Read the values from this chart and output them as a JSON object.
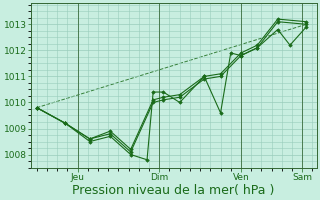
{
  "bg_color": "#c8eee0",
  "grid_color": "#99ccbb",
  "line_color": "#1a6b1a",
  "xlabel": "Pression niveau de la mer( hPa )",
  "xlabel_fontsize": 9,
  "tick_fontsize": 6.5,
  "ylim": [
    1007.5,
    1013.8
  ],
  "yticks": [
    1008,
    1009,
    1010,
    1011,
    1012,
    1013
  ],
  "day_labels": [
    "Jeu",
    "Dim",
    "Ven",
    "Sam"
  ],
  "day_positions": [
    1,
    3,
    5,
    6.5
  ],
  "series1_x": [
    0.0,
    0.7,
    1.3,
    1.8,
    2.3,
    2.7,
    2.85,
    3.1,
    3.5,
    4.1,
    4.5,
    4.75,
    5.0,
    5.4,
    5.9,
    6.2,
    6.6
  ],
  "series1_y": [
    1009.8,
    1009.2,
    1008.5,
    1008.7,
    1008.0,
    1007.8,
    1010.4,
    1010.4,
    1010.0,
    1011.0,
    1009.6,
    1011.9,
    1011.8,
    1012.1,
    1012.8,
    1012.2,
    1012.9
  ],
  "series2_x": [
    0.0,
    0.7,
    1.3,
    1.8,
    2.3,
    2.85,
    3.1,
    3.5,
    4.1,
    4.5,
    5.0,
    5.4,
    5.9,
    6.6
  ],
  "series2_y": [
    1009.8,
    1009.2,
    1008.6,
    1008.8,
    1008.1,
    1010.0,
    1010.1,
    1010.2,
    1010.9,
    1011.0,
    1011.8,
    1012.1,
    1013.1,
    1013.0
  ],
  "series3_x": [
    0.0,
    0.7,
    1.3,
    1.8,
    2.3,
    2.85,
    3.1,
    3.5,
    4.1,
    4.5,
    5.0,
    5.4,
    5.9,
    6.6
  ],
  "series3_y": [
    1009.8,
    1009.2,
    1008.6,
    1008.9,
    1008.2,
    1010.1,
    1010.2,
    1010.3,
    1011.0,
    1011.1,
    1011.9,
    1012.2,
    1013.2,
    1013.1
  ],
  "trend_x": [
    0.0,
    6.6
  ],
  "trend_y": [
    1009.8,
    1013.0
  ],
  "vline_positions": [
    1,
    3,
    5,
    6.5
  ],
  "xlim": [
    -0.15,
    6.85
  ]
}
